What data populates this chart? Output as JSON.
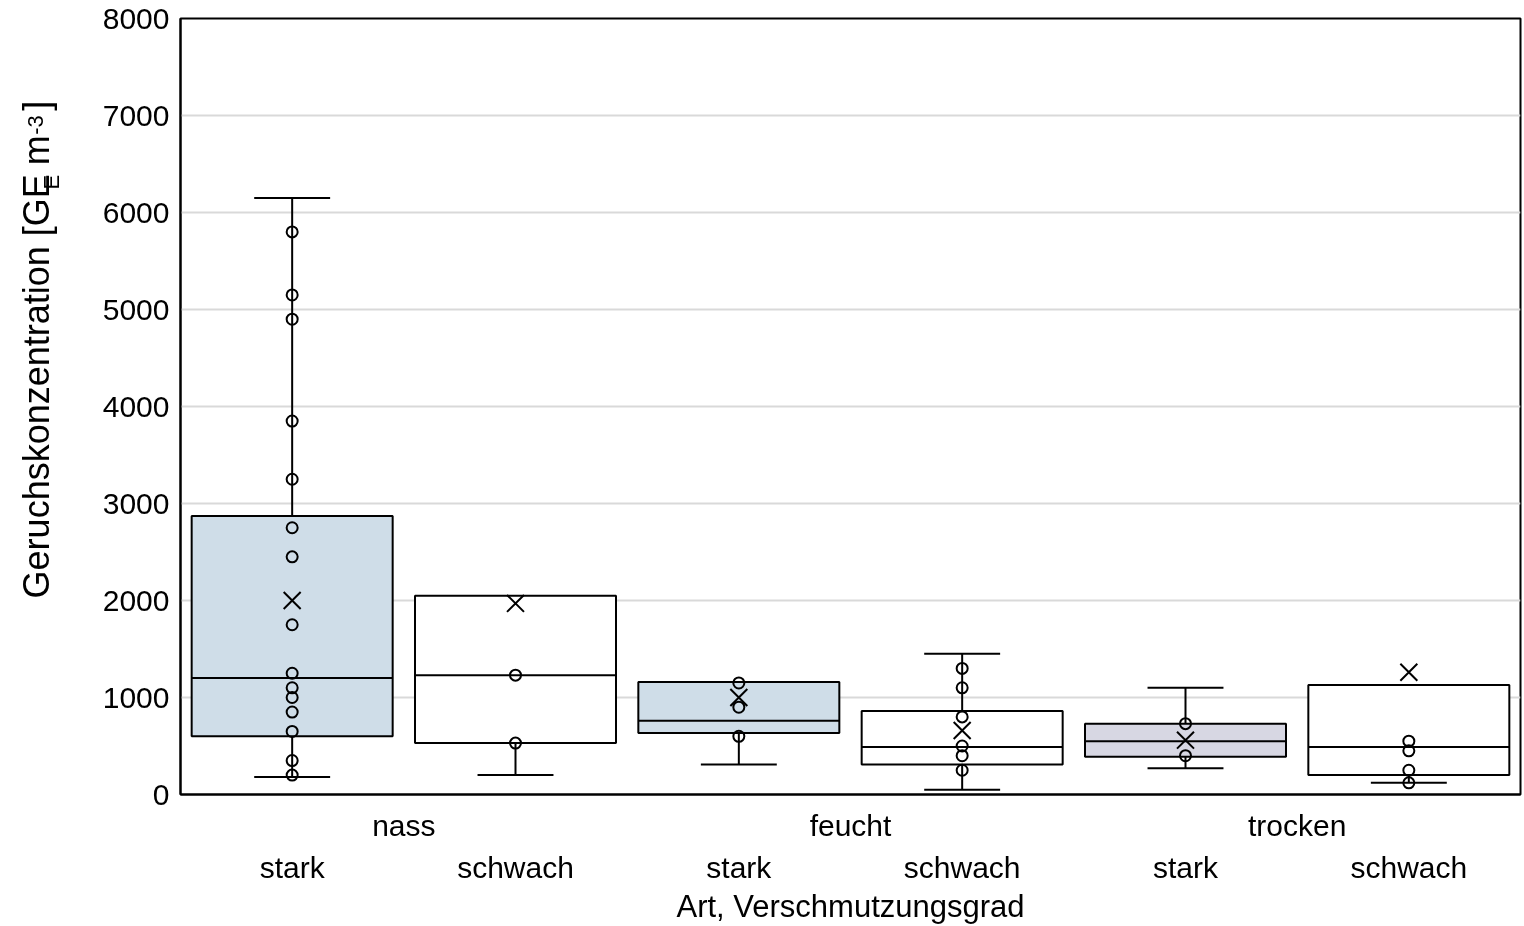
{
  "chart_data": {
    "type": "box",
    "ylabel": "Geruchskonzentration [GE$_{E}$ m$^{-3}$]",
    "xlabel": "Art, Verschmutzungsgrad",
    "categories": [
      "stark",
      "schwach",
      "stark",
      "schwach",
      "stark",
      "schwach"
    ],
    "annotations": [
      "nass",
      "feucht",
      "trocken"
    ],
    "colors": [
      "#cfdde8",
      "#ffffff",
      "#cfdde8",
      "#ffffff",
      "#d7d7e3",
      "#ffffff"
    ],
    "boxes": [
      {
        "low": 180,
        "q1": 600,
        "median": 1200,
        "q3": 2870,
        "high": 6150,
        "mean": 2000,
        "outliers": [
          5800,
          5150,
          4900,
          3850,
          3250,
          2750,
          2450,
          1750,
          1250,
          1100,
          1000,
          850,
          650,
          350,
          200
        ]
      },
      {
        "low": 200,
        "q1": 530,
        "median": 1230,
        "q3": 2050,
        "high": 2050,
        "mean": 1970,
        "outliers": [
          1230,
          530
        ]
      },
      {
        "low": 310,
        "q1": 635,
        "median": 760,
        "q3": 1160,
        "high": 1160,
        "mean": 1000,
        "outliers": [
          1150,
          900,
          600
        ]
      },
      {
        "low": 50,
        "q1": 310,
        "median": 490,
        "q3": 860,
        "high": 1450,
        "mean": 660,
        "outliers": [
          1300,
          1100,
          800,
          500,
          400,
          250
        ]
      },
      {
        "low": 270,
        "q1": 390,
        "median": 550,
        "q3": 730,
        "high": 1100,
        "mean": 560,
        "outliers": [
          730,
          400
        ]
      },
      {
        "low": 120,
        "q1": 200,
        "median": 490,
        "q3": 1130,
        "high": 1130,
        "mean": 1260,
        "outliers": [
          550,
          450,
          250,
          120
        ]
      }
    ],
    "marker": "circle",
    "ylim": [
      0,
      8000
    ],
    "yticks": [
      0,
      1000,
      2000,
      3000,
      4000,
      5000,
      6000,
      7000,
      8000
    ],
    "grid": "y"
  }
}
